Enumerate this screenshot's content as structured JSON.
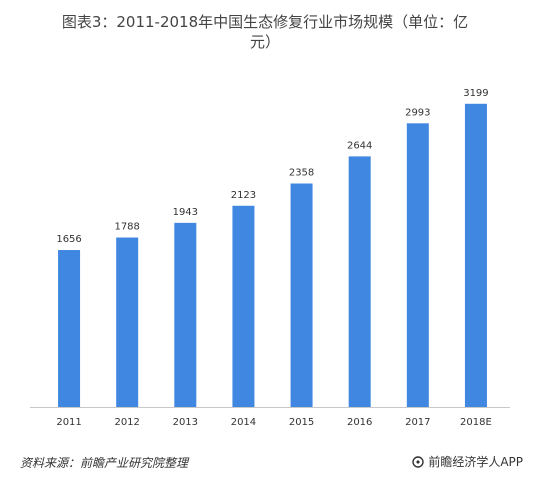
{
  "title_line1": "图表3：2011-2018年中国生态修复行业市场规模（单位：亿",
  "title_line2": "元）",
  "footer": {
    "source": "资料来源：前瞻产业研究院整理",
    "brand": "前瞻经济学人APP"
  },
  "colors": {
    "bar": "#3f87e0",
    "axis": "#c8c8c8",
    "label": "#333333"
  },
  "chart_data": {
    "type": "bar",
    "categories": [
      "2011",
      "2012",
      "2013",
      "2014",
      "2015",
      "2016",
      "2017",
      "2018E"
    ],
    "values": [
      1656,
      1788,
      1943,
      2123,
      2358,
      2644,
      2993,
      3199
    ],
    "ylim": [
      0,
      3450
    ],
    "title": "图表3：2011-2018年中国生态修复行业市场规模（单位：亿元）",
    "xlabel": "",
    "ylabel": "",
    "grid": false,
    "legend": "none"
  }
}
